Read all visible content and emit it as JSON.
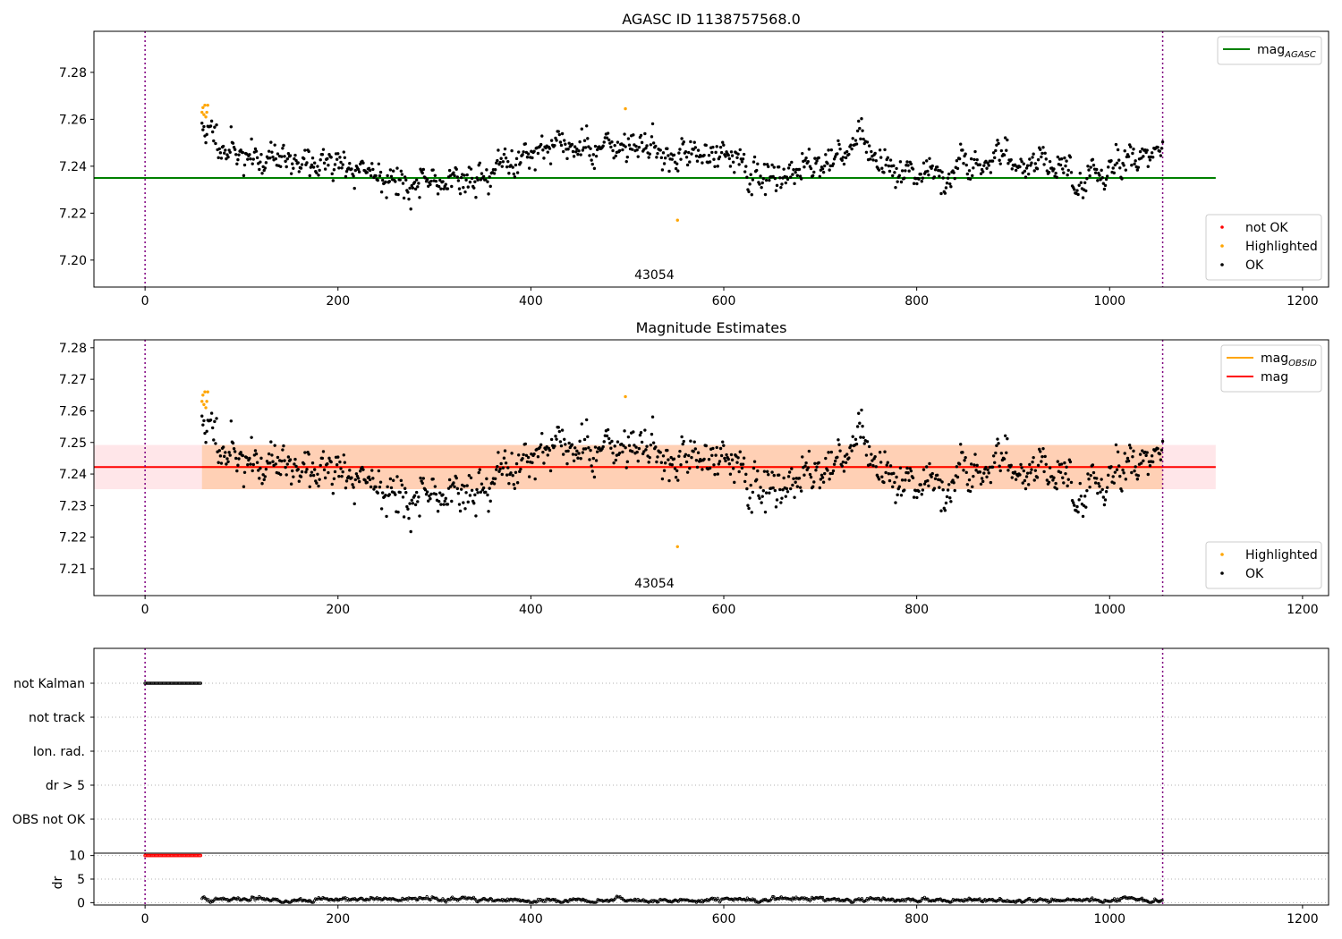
{
  "chart_data": [
    {
      "type": "scatter",
      "title": "AGASC ID 1138757568.0",
      "xlabel": "",
      "ylabel": "",
      "xlim": [
        -53,
        1227
      ],
      "ylim": [
        7.1885,
        7.2975
      ],
      "xticks": [
        0,
        200,
        400,
        600,
        800,
        1000,
        1200
      ],
      "yticks": [
        7.2,
        7.22,
        7.24,
        7.26,
        7.28
      ],
      "ytick_labels": [
        "7.20",
        "7.22",
        "7.24",
        "7.26",
        "7.28"
      ],
      "grid": false,
      "obsid_label": "43054",
      "obsid_label_x": 528,
      "vlines_dotted": [
        0,
        1055
      ],
      "hline": {
        "name": "mag_AGASC",
        "label_base": "mag",
        "label_sub": "AGASC",
        "value": 7.235,
        "x_range": [
          -53,
          1110
        ],
        "color": "#008000"
      },
      "legends": [
        {
          "position": "upper-right",
          "entries": [
            {
              "label": "mag",
              "sub": "AGASC",
              "kind": "line",
              "color": "#008000"
            }
          ]
        },
        {
          "position": "lower-right",
          "entries": [
            {
              "label": "not OK",
              "kind": "dot",
              "color": "#ff0000"
            },
            {
              "label": "Highlighted",
              "kind": "dot",
              "color": "#ffa500"
            },
            {
              "label": "OK",
              "kind": "dot",
              "color": "#000000"
            }
          ]
        }
      ],
      "series": [
        {
          "name": "not OK",
          "color": "#ff0000",
          "points": []
        },
        {
          "name": "Highlighted",
          "color": "#ffa500",
          "points": [
            [
              59,
              7.263
            ],
            [
              60,
              7.265
            ],
            [
              61,
              7.262
            ],
            [
              62,
              7.266
            ],
            [
              63,
              7.261
            ],
            [
              64,
              7.263
            ],
            [
              65,
              7.266
            ],
            [
              498,
              7.2645
            ],
            [
              552,
              7.217
            ]
          ]
        },
        {
          "name": "OK",
          "color": "#000000",
          "points": [],
          "n_points": 990,
          "x_range": [
            59,
            1055
          ],
          "profile": [
            [
              60,
              7.256
            ],
            [
              100,
              7.244
            ],
            [
              150,
              7.243
            ],
            [
              200,
              7.24
            ],
            [
              240,
              7.238
            ],
            [
              275,
              7.232
            ],
            [
              300,
              7.231
            ],
            [
              325,
              7.237
            ],
            [
              345,
              7.233
            ],
            [
              380,
              7.243
            ],
            [
              410,
              7.249
            ],
            [
              450,
              7.247
            ],
            [
              495,
              7.249
            ],
            [
              530,
              7.246
            ],
            [
              580,
              7.243
            ],
            [
              600,
              7.25
            ],
            [
              620,
              7.235
            ],
            [
              660,
              7.238
            ],
            [
              700,
              7.24
            ],
            [
              740,
              7.248
            ],
            [
              780,
              7.238
            ],
            [
              820,
              7.236
            ],
            [
              835,
              7.232
            ],
            [
              860,
              7.244
            ],
            [
              900,
              7.243
            ],
            [
              960,
              7.24
            ],
            [
              975,
              7.232
            ],
            [
              1000,
              7.242
            ],
            [
              1055,
              7.245
            ]
          ],
          "spread": 0.0038,
          "seed": 11
        }
      ]
    },
    {
      "type": "scatter",
      "title": "Magnitude Estimates",
      "xlabel": "",
      "ylabel": "",
      "xlim": [
        -53,
        1227
      ],
      "ylim": [
        7.2015,
        7.2825
      ],
      "xticks": [
        0,
        200,
        400,
        600,
        800,
        1000,
        1200
      ],
      "yticks": [
        7.21,
        7.22,
        7.23,
        7.24,
        7.25,
        7.26,
        7.27,
        7.28
      ],
      "ytick_labels": [
        "7.21",
        "7.22",
        "7.23",
        "7.24",
        "7.25",
        "7.26",
        "7.27",
        "7.28"
      ],
      "grid": false,
      "obsid_label": "43054",
      "obsid_label_x": 528,
      "vlines_dotted": [
        0,
        1055
      ],
      "bands": [
        {
          "name": "mag-band",
          "x_range": [
            -53,
            1110
          ],
          "y_range": [
            7.2352,
            7.2492
          ],
          "color": "#ffb6c1",
          "opacity": 0.35
        },
        {
          "name": "obsid-band",
          "x_range": [
            59,
            1055
          ],
          "y_range": [
            7.2352,
            7.2492
          ],
          "color": "#ffa040",
          "opacity": 0.3
        }
      ],
      "hlines": [
        {
          "name": "mag_OBSID",
          "value": 7.2422,
          "x_range": [
            59,
            1055
          ],
          "color": "#ffa500"
        },
        {
          "name": "mag",
          "value": 7.2422,
          "x_range": [
            -53,
            1110
          ],
          "color": "#ff0000"
        }
      ],
      "legends": [
        {
          "position": "upper-right",
          "entries": [
            {
              "label": "mag",
              "sub": "OBSID",
              "kind": "line",
              "color": "#ffa500"
            },
            {
              "label": "mag",
              "sub": "",
              "kind": "line",
              "color": "#ff0000"
            }
          ]
        },
        {
          "position": "lower-right",
          "entries": [
            {
              "label": "Highlighted",
              "kind": "dot",
              "color": "#ffa500"
            },
            {
              "label": "OK",
              "kind": "dot",
              "color": "#000000"
            }
          ]
        }
      ],
      "series": [
        {
          "name": "Highlighted",
          "color": "#ffa500",
          "points": [
            [
              59,
              7.263
            ],
            [
              60,
              7.265
            ],
            [
              61,
              7.262
            ],
            [
              62,
              7.266
            ],
            [
              63,
              7.261
            ],
            [
              64,
              7.263
            ],
            [
              65,
              7.266
            ],
            [
              498,
              7.2645
            ],
            [
              552,
              7.217
            ]
          ]
        },
        {
          "name": "OK",
          "color": "#000000",
          "points": [],
          "n_points": 990,
          "x_range": [
            59,
            1055
          ],
          "profile": [
            [
              60,
              7.256
            ],
            [
              100,
              7.244
            ],
            [
              150,
              7.243
            ],
            [
              200,
              7.24
            ],
            [
              240,
              7.238
            ],
            [
              275,
              7.232
            ],
            [
              300,
              7.231
            ],
            [
              325,
              7.237
            ],
            [
              345,
              7.233
            ],
            [
              380,
              7.243
            ],
            [
              410,
              7.249
            ],
            [
              450,
              7.247
            ],
            [
              495,
              7.249
            ],
            [
              530,
              7.246
            ],
            [
              580,
              7.243
            ],
            [
              600,
              7.25
            ],
            [
              620,
              7.235
            ],
            [
              660,
              7.238
            ],
            [
              700,
              7.24
            ],
            [
              740,
              7.248
            ],
            [
              780,
              7.238
            ],
            [
              820,
              7.236
            ],
            [
              835,
              7.232
            ],
            [
              860,
              7.244
            ],
            [
              900,
              7.243
            ],
            [
              960,
              7.24
            ],
            [
              975,
              7.232
            ],
            [
              1000,
              7.242
            ],
            [
              1055,
              7.245
            ]
          ],
          "spread": 0.0038,
          "seed": 11
        }
      ]
    },
    {
      "type": "scatter",
      "title": "",
      "xlim": [
        -53,
        1227
      ],
      "categories": [
        "not Kalman",
        "not track",
        "Ion. rad.",
        "dr > 5",
        "OBS not OK"
      ],
      "grid": true,
      "vlines_dotted": [
        0,
        1055
      ],
      "flags": [
        {
          "category": "not Kalman",
          "x_range": [
            0,
            58
          ],
          "color": "#000000"
        }
      ]
    },
    {
      "type": "scatter",
      "title": "",
      "xlabel": "",
      "ylabel": "dr",
      "xlim": [
        -53,
        1227
      ],
      "ylim": [
        -0.5,
        10.5
      ],
      "xticks": [
        0,
        200,
        400,
        600,
        800,
        1000,
        1200
      ],
      "yticks": [
        0,
        5,
        10
      ],
      "ytick_labels": [
        "0",
        "5",
        "10"
      ],
      "grid": true,
      "vlines_dotted": [
        0,
        1055
      ],
      "series": [
        {
          "name": "dr-clipped",
          "color": "#ff0000",
          "x_range": [
            0,
            58
          ],
          "value": 10
        },
        {
          "name": "dr",
          "color": "#000000",
          "x_range": [
            59,
            1055
          ],
          "base": 0.5,
          "spread": 0.4,
          "seed": 7
        }
      ]
    }
  ]
}
